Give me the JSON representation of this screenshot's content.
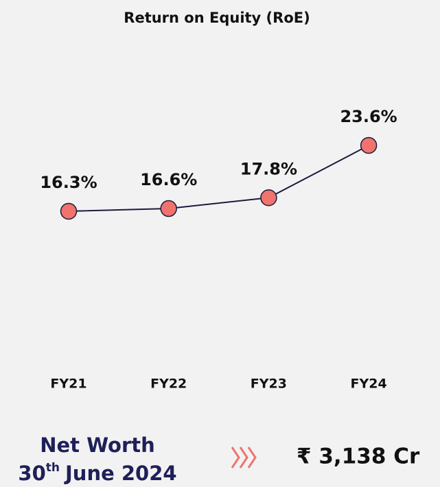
{
  "chart_data": {
    "type": "line",
    "title": "Return on Equity (RoE)",
    "categories": [
      "FY21",
      "FY22",
      "FY23",
      "FY24"
    ],
    "values": [
      16.3,
      16.6,
      17.8,
      23.6
    ],
    "value_labels": [
      "16.3%",
      "16.6%",
      "17.8%",
      "23.6%"
    ],
    "line_color": "#1a1a3e",
    "marker_color": "#f0736e"
  },
  "net_worth": {
    "label": "Net Worth",
    "date_day": "30",
    "date_suffix": "th",
    "date_rest": "June 2024",
    "value": "₹ 3,138 Cr"
  }
}
